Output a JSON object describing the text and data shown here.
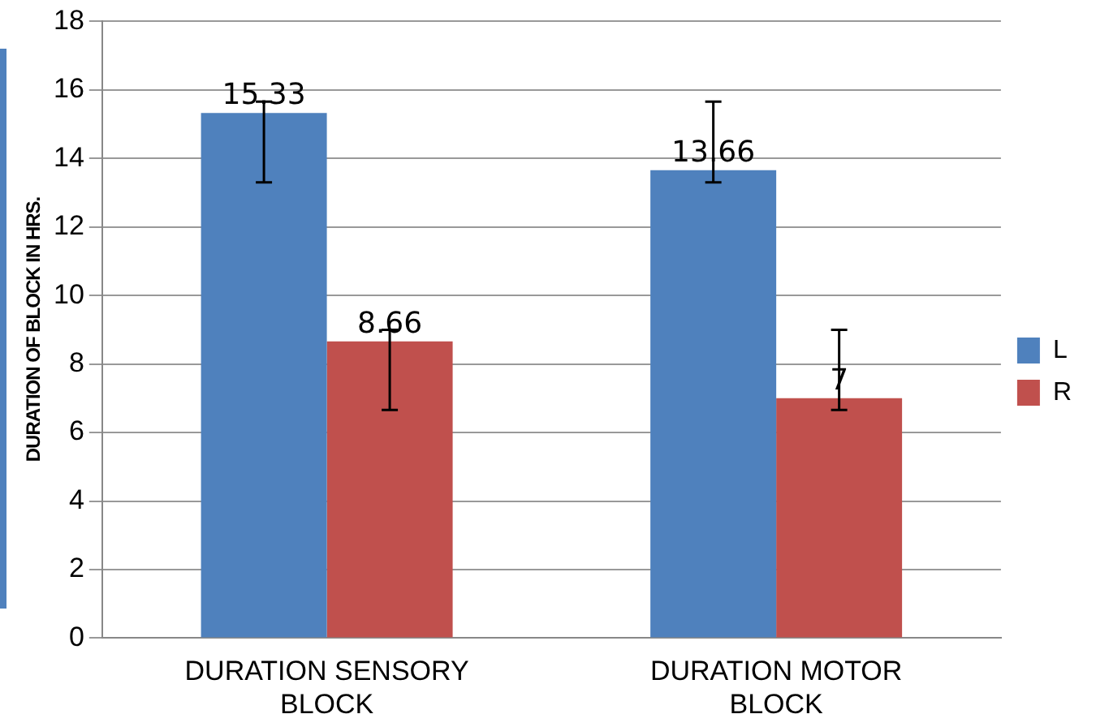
{
  "chart_data": {
    "type": "bar",
    "ylabel": "DURATION OF BLOCK IN HRS.",
    "categories": [
      "DURATION SENSORY BLOCK",
      "DURATION MOTOR BLOCK"
    ],
    "series": [
      {
        "name": "L",
        "color": "#4f81bd",
        "values": [
          15.33,
          13.66
        ],
        "errors": [
          [
            13.3,
            15.66
          ],
          [
            13.3,
            15.66
          ]
        ]
      },
      {
        "name": "R",
        "color": "#c0504d",
        "values": [
          8.66,
          7
        ],
        "errors": [
          [
            6.66,
            9
          ],
          [
            6.66,
            9
          ]
        ]
      }
    ],
    "ylim": [
      0,
      18
    ],
    "yticks": [
      0,
      2,
      4,
      6,
      8,
      10,
      12,
      14,
      16,
      18
    ],
    "grid": "y",
    "legend": "right",
    "data_labels": true
  }
}
